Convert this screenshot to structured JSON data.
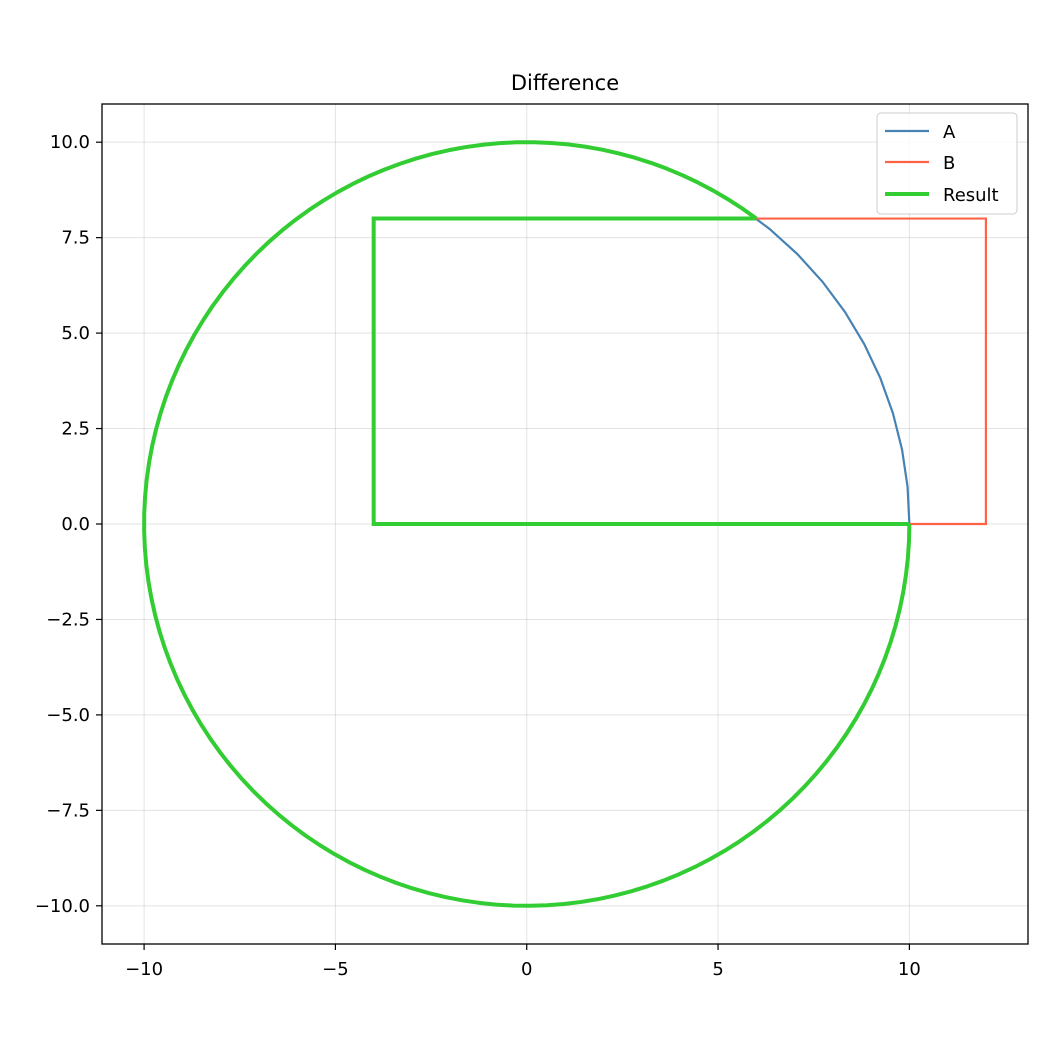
{
  "chart_data": {
    "type": "line",
    "title": "Difference",
    "xlabel": "",
    "ylabel": "",
    "xlim": [
      -11.1,
      13.1
    ],
    "ylim": [
      -11.0,
      11.0
    ],
    "grid": true,
    "legend": "top-right",
    "x_ticks": [
      -10,
      -5,
      0,
      5,
      10
    ],
    "x_tick_labels": [
      "−10",
      "−5",
      "0",
      "5",
      "10"
    ],
    "y_ticks": [
      10.0,
      7.5,
      5.0,
      2.5,
      0.0,
      -2.5,
      -5.0,
      -7.5,
      -10.0
    ],
    "y_tick_labels": [
      "10.0",
      "7.5",
      "5.0",
      "2.5",
      "0.0",
      "−2.5",
      "−5.0",
      "−7.5",
      "−10.0"
    ],
    "series": [
      {
        "name": "A",
        "color": "#4682b4",
        "shape": "circle",
        "center": [
          0,
          0
        ],
        "radius": 10,
        "segments": 64
      },
      {
        "name": "B",
        "color": "#ff6347",
        "shape": "polygon",
        "points": [
          [
            -4,
            0
          ],
          [
            12,
            0
          ],
          [
            12,
            8
          ],
          [
            -4,
            8
          ],
          [
            -4,
            0
          ]
        ]
      },
      {
        "name": "Result",
        "color": "#32cd32",
        "shape": "difference",
        "note_points": [
          [
            -4,
            0
          ],
          [
            10,
            0
          ],
          [
            6,
            8
          ],
          [
            -4,
            8
          ]
        ]
      }
    ]
  }
}
